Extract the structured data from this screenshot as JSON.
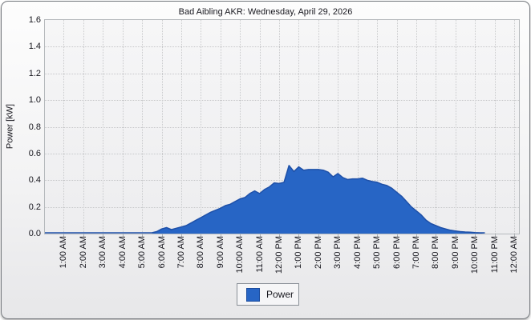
{
  "window": {
    "title": "Bad Aibling AKR: Wednesday, April 29, 2026"
  },
  "chart_data": {
    "type": "area",
    "title": "Bad Aibling AKR: Wednesday, April 29, 2026",
    "xlabel": "",
    "ylabel": "Power [kW]",
    "ylim": [
      0,
      1.6
    ],
    "y_ticks": [
      "0.0",
      "0.2",
      "0.4",
      "0.6",
      "0.8",
      "1.0",
      "1.2",
      "1.4",
      "1.6"
    ],
    "x_ticks": [
      "1:00 AM",
      "2:00 AM",
      "3:00 AM",
      "4:00 AM",
      "5:00 AM",
      "6:00 AM",
      "7:00 AM",
      "8:00 AM",
      "9:00 AM",
      "10:00 AM",
      "11:00 AM",
      "12:00 PM",
      "1:00 PM",
      "2:00 PM",
      "3:00 PM",
      "4:00 PM",
      "5:00 PM",
      "6:00 PM",
      "7:00 PM",
      "8:00 PM",
      "9:00 PM",
      "10:00 PM",
      "11:00 PM",
      "12:00 AM"
    ],
    "x_hours_span": [
      0,
      24.2
    ],
    "grid": "dotted",
    "legend_position": "bottom-center",
    "series": [
      {
        "name": "Power",
        "unit": "kW",
        "fill_color": "#2765c5",
        "line_color": "#1e50a8",
        "points_hour_kw": [
          [
            0,
            0
          ],
          [
            1,
            0
          ],
          [
            2,
            0
          ],
          [
            3,
            0
          ],
          [
            4,
            0
          ],
          [
            5,
            0
          ],
          [
            5.5,
            0
          ],
          [
            5.75,
            0.015
          ],
          [
            6,
            0.035
          ],
          [
            6.25,
            0.045
          ],
          [
            6.5,
            0.03
          ],
          [
            6.75,
            0.04
          ],
          [
            7,
            0.05
          ],
          [
            7.25,
            0.06
          ],
          [
            7.5,
            0.08
          ],
          [
            7.75,
            0.1
          ],
          [
            8,
            0.12
          ],
          [
            8.25,
            0.14
          ],
          [
            8.5,
            0.16
          ],
          [
            8.75,
            0.175
          ],
          [
            9,
            0.19
          ],
          [
            9.25,
            0.21
          ],
          [
            9.5,
            0.22
          ],
          [
            9.75,
            0.24
          ],
          [
            10,
            0.26
          ],
          [
            10.25,
            0.27
          ],
          [
            10.5,
            0.3
          ],
          [
            10.75,
            0.32
          ],
          [
            11,
            0.3
          ],
          [
            11.25,
            0.33
          ],
          [
            11.5,
            0.35
          ],
          [
            11.75,
            0.38
          ],
          [
            12,
            0.375
          ],
          [
            12.25,
            0.385
          ],
          [
            12.5,
            0.51
          ],
          [
            12.75,
            0.465
          ],
          [
            13,
            0.5
          ],
          [
            13.25,
            0.475
          ],
          [
            13.5,
            0.48
          ],
          [
            13.75,
            0.48
          ],
          [
            14,
            0.48
          ],
          [
            14.25,
            0.475
          ],
          [
            14.5,
            0.46
          ],
          [
            14.75,
            0.425
          ],
          [
            15,
            0.45
          ],
          [
            15.25,
            0.42
          ],
          [
            15.5,
            0.405
          ],
          [
            15.75,
            0.41
          ],
          [
            16,
            0.41
          ],
          [
            16.25,
            0.415
          ],
          [
            16.5,
            0.4
          ],
          [
            16.75,
            0.39
          ],
          [
            17,
            0.385
          ],
          [
            17.25,
            0.37
          ],
          [
            17.5,
            0.36
          ],
          [
            17.75,
            0.34
          ],
          [
            18,
            0.31
          ],
          [
            18.25,
            0.28
          ],
          [
            18.5,
            0.24
          ],
          [
            18.75,
            0.2
          ],
          [
            19,
            0.17
          ],
          [
            19.25,
            0.14
          ],
          [
            19.5,
            0.1
          ],
          [
            19.75,
            0.075
          ],
          [
            20,
            0.06
          ],
          [
            20.25,
            0.045
          ],
          [
            20.5,
            0.035
          ],
          [
            20.75,
            0.025
          ],
          [
            21,
            0.02
          ],
          [
            21.25,
            0.015
          ],
          [
            21.5,
            0.012
          ],
          [
            21.75,
            0.01
          ],
          [
            22,
            0.007
          ],
          [
            22.25,
            0.004
          ],
          [
            22.5,
            0
          ]
        ]
      }
    ]
  },
  "legend": {
    "items": [
      {
        "label": "Power",
        "color": "#2765c5"
      }
    ]
  },
  "colors": {
    "series_fill": "#2765c5",
    "series_line": "#1e50a8",
    "plot_background": "#f1f1f2",
    "grid": "#c8c9cb",
    "window_border": "#75797e",
    "text": "#17171e"
  }
}
